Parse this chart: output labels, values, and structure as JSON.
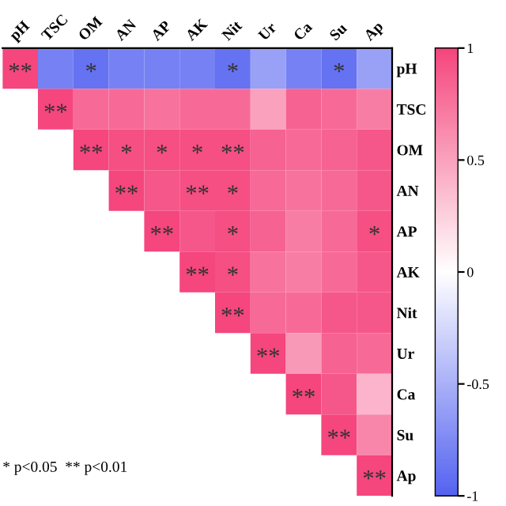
{
  "chart_data": {
    "type": "heatmap",
    "categories": [
      "pH",
      "TSC",
      "OM",
      "AN",
      "AP",
      "AK",
      "Nit",
      "Ur",
      "Ca",
      "Su",
      "Ap"
    ],
    "y_categories": [
      "pH",
      "TSC",
      "OM",
      "AN",
      "AP",
      "AK",
      "Nit",
      "Ur",
      "Ca",
      "Su",
      "Ap"
    ],
    "cells": [
      [
        1,
        -0.8,
        -0.9,
        -0.8,
        -0.8,
        -0.8,
        -0.9,
        -0.6,
        -0.8,
        -0.9,
        -0.6
      ],
      [
        null,
        1,
        0.8,
        0.8,
        0.75,
        0.8,
        0.8,
        0.5,
        0.85,
        0.8,
        0.7
      ],
      [
        null,
        null,
        1,
        0.95,
        0.95,
        0.95,
        0.95,
        0.85,
        0.8,
        0.85,
        0.9
      ],
      [
        null,
        null,
        null,
        1,
        0.9,
        0.95,
        0.95,
        0.8,
        0.75,
        0.8,
        0.9
      ],
      [
        null,
        null,
        null,
        null,
        1,
        0.9,
        0.95,
        0.85,
        0.7,
        0.8,
        0.95
      ],
      [
        null,
        null,
        null,
        null,
        null,
        1,
        0.95,
        0.75,
        0.7,
        0.8,
        0.9
      ],
      [
        null,
        null,
        null,
        null,
        null,
        null,
        1,
        0.8,
        0.8,
        0.9,
        0.9
      ],
      [
        null,
        null,
        null,
        null,
        null,
        null,
        null,
        1,
        0.55,
        0.85,
        0.8
      ],
      [
        null,
        null,
        null,
        null,
        null,
        null,
        null,
        null,
        1,
        0.9,
        0.4
      ],
      [
        null,
        null,
        null,
        null,
        null,
        null,
        null,
        null,
        null,
        1,
        0.65
      ],
      [
        null,
        null,
        null,
        null,
        null,
        null,
        null,
        null,
        null,
        null,
        1
      ]
    ],
    "cell_labels": [
      [
        "**",
        null,
        "*",
        null,
        null,
        null,
        "*",
        null,
        null,
        "*",
        null
      ],
      [
        null,
        "**",
        null,
        null,
        null,
        null,
        null,
        null,
        null,
        null,
        null
      ],
      [
        null,
        null,
        "**",
        "*",
        "*",
        "*",
        "**",
        null,
        null,
        null,
        null
      ],
      [
        null,
        null,
        null,
        "**",
        null,
        "**",
        "*",
        null,
        null,
        null,
        null
      ],
      [
        null,
        null,
        null,
        null,
        "**",
        null,
        "*",
        null,
        null,
        null,
        "*"
      ],
      [
        null,
        null,
        null,
        null,
        null,
        "**",
        "*",
        null,
        null,
        null,
        null
      ],
      [
        null,
        null,
        null,
        null,
        null,
        null,
        "**",
        null,
        null,
        null,
        null
      ],
      [
        null,
        null,
        null,
        null,
        null,
        null,
        null,
        "**",
        null,
        null,
        null
      ],
      [
        null,
        null,
        null,
        null,
        null,
        null,
        null,
        null,
        "**",
        null,
        null
      ],
      [
        null,
        null,
        null,
        null,
        null,
        null,
        null,
        null,
        null,
        "**",
        null
      ],
      [
        null,
        null,
        null,
        null,
        null,
        null,
        null,
        null,
        null,
        null,
        "**"
      ]
    ],
    "clim": [
      -1,
      1
    ],
    "cticks": [
      -1,
      -0.5,
      0,
      0.5,
      1
    ],
    "annotations": [
      "* p<0.05  ** p<0.01"
    ]
  }
}
